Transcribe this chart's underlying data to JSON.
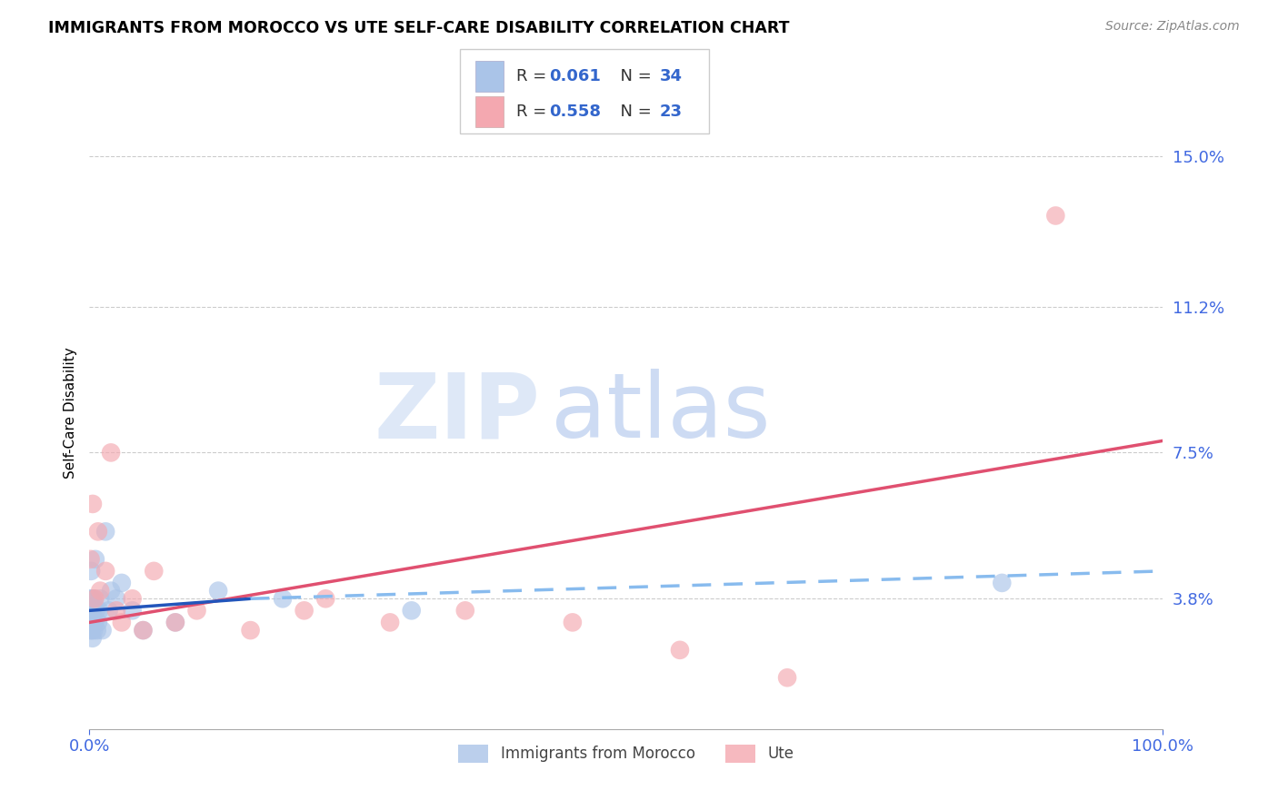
{
  "title": "IMMIGRANTS FROM MOROCCO VS UTE SELF-CARE DISABILITY CORRELATION CHART",
  "source": "Source: ZipAtlas.com",
  "tick_color": "#4169e1",
  "ylabel": "Self-Care Disability",
  "x_tick_labels": [
    "0.0%",
    "100.0%"
  ],
  "y_tick_labels": [
    "3.8%",
    "7.5%",
    "11.2%",
    "15.0%"
  ],
  "y_tick_values": [
    3.8,
    7.5,
    11.2,
    15.0
  ],
  "xlim": [
    0,
    100
  ],
  "ylim": [
    0.5,
    16.5
  ],
  "background_color": "#ffffff",
  "grid_color": "#cccccc",
  "blue_color": "#aac4e8",
  "pink_color": "#f4a8b0",
  "trendline_blue_solid_color": "#2255bb",
  "trendline_pink_solid_color": "#e05070",
  "trendline_blue_dashed_color": "#88bbee",
  "watermark_zip": "ZIP",
  "watermark_atlas": "atlas",
  "blue_points_x": [
    0.05,
    0.08,
    0.1,
    0.12,
    0.15,
    0.18,
    0.2,
    0.22,
    0.25,
    0.28,
    0.3,
    0.35,
    0.4,
    0.45,
    0.5,
    0.55,
    0.6,
    0.7,
    0.8,
    0.9,
    1.0,
    1.2,
    1.5,
    1.8,
    2.0,
    2.5,
    3.0,
    4.0,
    5.0,
    8.0,
    12.0,
    18.0,
    30.0,
    85.0
  ],
  "blue_points_y": [
    3.5,
    3.2,
    3.0,
    3.8,
    4.5,
    3.2,
    3.0,
    3.5,
    3.8,
    2.8,
    3.2,
    3.5,
    3.0,
    3.8,
    3.2,
    4.8,
    3.5,
    3.0,
    3.2,
    3.5,
    3.8,
    3.0,
    5.5,
    3.5,
    4.0,
    3.8,
    4.2,
    3.5,
    3.0,
    3.2,
    4.0,
    3.8,
    3.5,
    4.2
  ],
  "pink_points_x": [
    0.1,
    0.3,
    0.5,
    0.8,
    1.0,
    1.5,
    2.0,
    2.5,
    3.0,
    4.0,
    5.0,
    6.0,
    8.0,
    10.0,
    15.0,
    20.0,
    22.0,
    28.0,
    35.0,
    45.0,
    55.0,
    65.0,
    90.0
  ],
  "pink_points_y": [
    4.8,
    6.2,
    3.8,
    5.5,
    4.0,
    4.5,
    7.5,
    3.5,
    3.2,
    3.8,
    3.0,
    4.5,
    3.2,
    3.5,
    3.0,
    3.5,
    3.8,
    3.2,
    3.5,
    3.2,
    2.5,
    1.8,
    13.5
  ],
  "legend_text_color": "#333333",
  "legend_value_color": "#3366cc",
  "pink_line_start_y": 3.2,
  "pink_line_end_y": 7.8,
  "blue_solid_start_y": 3.5,
  "blue_solid_end_y": 3.8,
  "blue_dashed_start_y": 3.8,
  "blue_dashed_end_y": 4.5
}
